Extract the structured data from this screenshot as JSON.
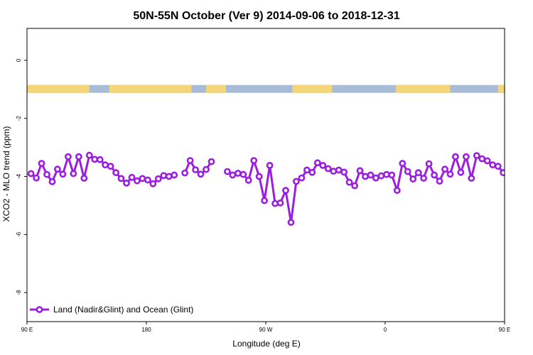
{
  "chart_data": {
    "type": "line",
    "title": "50N-55N October (Ver 9)   2014-09-06 to 2018-12-31",
    "xlabel": "Longitude (deg E)",
    "ylabel": "XCO2 - MLO trend (ppm)",
    "xlim": [
      90,
      450
    ],
    "ylim": [
      -9,
      1.1
    ],
    "x_ticks": [
      {
        "value": 90,
        "label": "90 E"
      },
      {
        "value": 180,
        "label": "180"
      },
      {
        "value": 270,
        "label": "90 W"
      },
      {
        "value": 360,
        "label": "0"
      },
      {
        "value": 450,
        "label": "90 E"
      },
      {
        "value": 540,
        "label": "180"
      }
    ],
    "y_ticks": [
      {
        "value": 0,
        "label": "0"
      },
      {
        "value": -2,
        "label": "-2"
      },
      {
        "value": -4,
        "label": "-4"
      },
      {
        "value": -6,
        "label": "-6"
      },
      {
        "value": -8,
        "label": "-8"
      }
    ],
    "grid": false,
    "legend": {
      "position": "bottom-left"
    },
    "land_strip": {
      "y_top": -0.85,
      "y_bottom": -1.12,
      "ocean_color": "#a8bcd8",
      "land_color": "#f5d57a",
      "land_segments": [
        [
          90,
          137
        ],
        [
          152,
          214
        ],
        [
          225,
          240
        ],
        [
          290,
          320
        ],
        [
          368,
          409
        ],
        [
          445,
          515
        ],
        [
          521,
          540
        ]
      ]
    },
    "series": [
      {
        "name": "Land (Nadir&Glint) and Ocean (Glint)",
        "color": "#9b1ee0",
        "segments": [
          [
            [
              93,
              -3.9
            ],
            [
              97,
              -4.05
            ],
            [
              101,
              -3.55
            ],
            [
              105,
              -3.93
            ],
            [
              109,
              -4.18
            ],
            [
              113,
              -3.75
            ],
            [
              117,
              -3.92
            ],
            [
              121,
              -3.32
            ],
            [
              125,
              -3.9
            ],
            [
              129,
              -3.32
            ],
            [
              133,
              -4.06
            ],
            [
              137,
              -3.27
            ],
            [
              141,
              -3.41
            ],
            [
              145,
              -3.42
            ],
            [
              149,
              -3.6
            ],
            [
              153,
              -3.65
            ],
            [
              157,
              -3.87
            ],
            [
              161,
              -4.07
            ],
            [
              165,
              -4.23
            ],
            [
              169,
              -4.03
            ],
            [
              173,
              -4.15
            ],
            [
              177,
              -4.07
            ],
            [
              181,
              -4.12
            ],
            [
              185,
              -4.25
            ],
            [
              189,
              -4.08
            ],
            [
              193,
              -3.97
            ],
            [
              197,
              -4.0
            ],
            [
              201,
              -3.95
            ]
          ],
          [
            [
              209,
              -3.88
            ],
            [
              213,
              -3.45
            ],
            [
              217,
              -3.77
            ],
            [
              221,
              -3.92
            ],
            [
              225,
              -3.76
            ],
            [
              229,
              -3.49
            ]
          ],
          [
            [
              241,
              -3.83
            ],
            [
              245,
              -3.95
            ],
            [
              249,
              -3.89
            ],
            [
              253,
              -3.93
            ],
            [
              257,
              -4.13
            ],
            [
              261,
              -3.45
            ],
            [
              265,
              -4.0
            ],
            [
              269,
              -4.83
            ],
            [
              273,
              -3.62
            ],
            [
              277,
              -4.93
            ],
            [
              281,
              -4.91
            ],
            [
              285,
              -4.48
            ],
            [
              289,
              -5.58
            ],
            [
              293,
              -4.17
            ],
            [
              297,
              -4.05
            ],
            [
              301,
              -3.78
            ],
            [
              305,
              -3.86
            ],
            [
              309,
              -3.53
            ],
            [
              313,
              -3.62
            ],
            [
              317,
              -3.73
            ],
            [
              321,
              -3.82
            ],
            [
              325,
              -3.78
            ],
            [
              329,
              -3.85
            ],
            [
              333,
              -4.2
            ],
            [
              337,
              -4.32
            ],
            [
              341,
              -3.8
            ],
            [
              345,
              -4.0
            ],
            [
              349,
              -3.95
            ],
            [
              353,
              -4.05
            ],
            [
              357,
              -3.98
            ],
            [
              361,
              -3.93
            ],
            [
              365,
              -3.95
            ],
            [
              369,
              -4.48
            ],
            [
              373,
              -3.55
            ],
            [
              377,
              -3.83
            ],
            [
              381,
              -4.09
            ],
            [
              385,
              -3.87
            ],
            [
              389,
              -4.06
            ],
            [
              393,
              -3.56
            ],
            [
              397,
              -3.95
            ],
            [
              401,
              -4.16
            ],
            [
              405,
              -3.75
            ],
            [
              409,
              -3.92
            ],
            [
              413,
              -3.32
            ],
            [
              417,
              -3.86
            ],
            [
              421,
              -3.32
            ],
            [
              425,
              -4.06
            ],
            [
              429,
              -3.28
            ],
            [
              433,
              -3.39
            ],
            [
              437,
              -3.46
            ],
            [
              441,
              -3.6
            ],
            [
              445,
              -3.65
            ],
            [
              449,
              -3.87
            ],
            [
              453,
              -4.07
            ]
          ]
        ]
      }
    ]
  }
}
